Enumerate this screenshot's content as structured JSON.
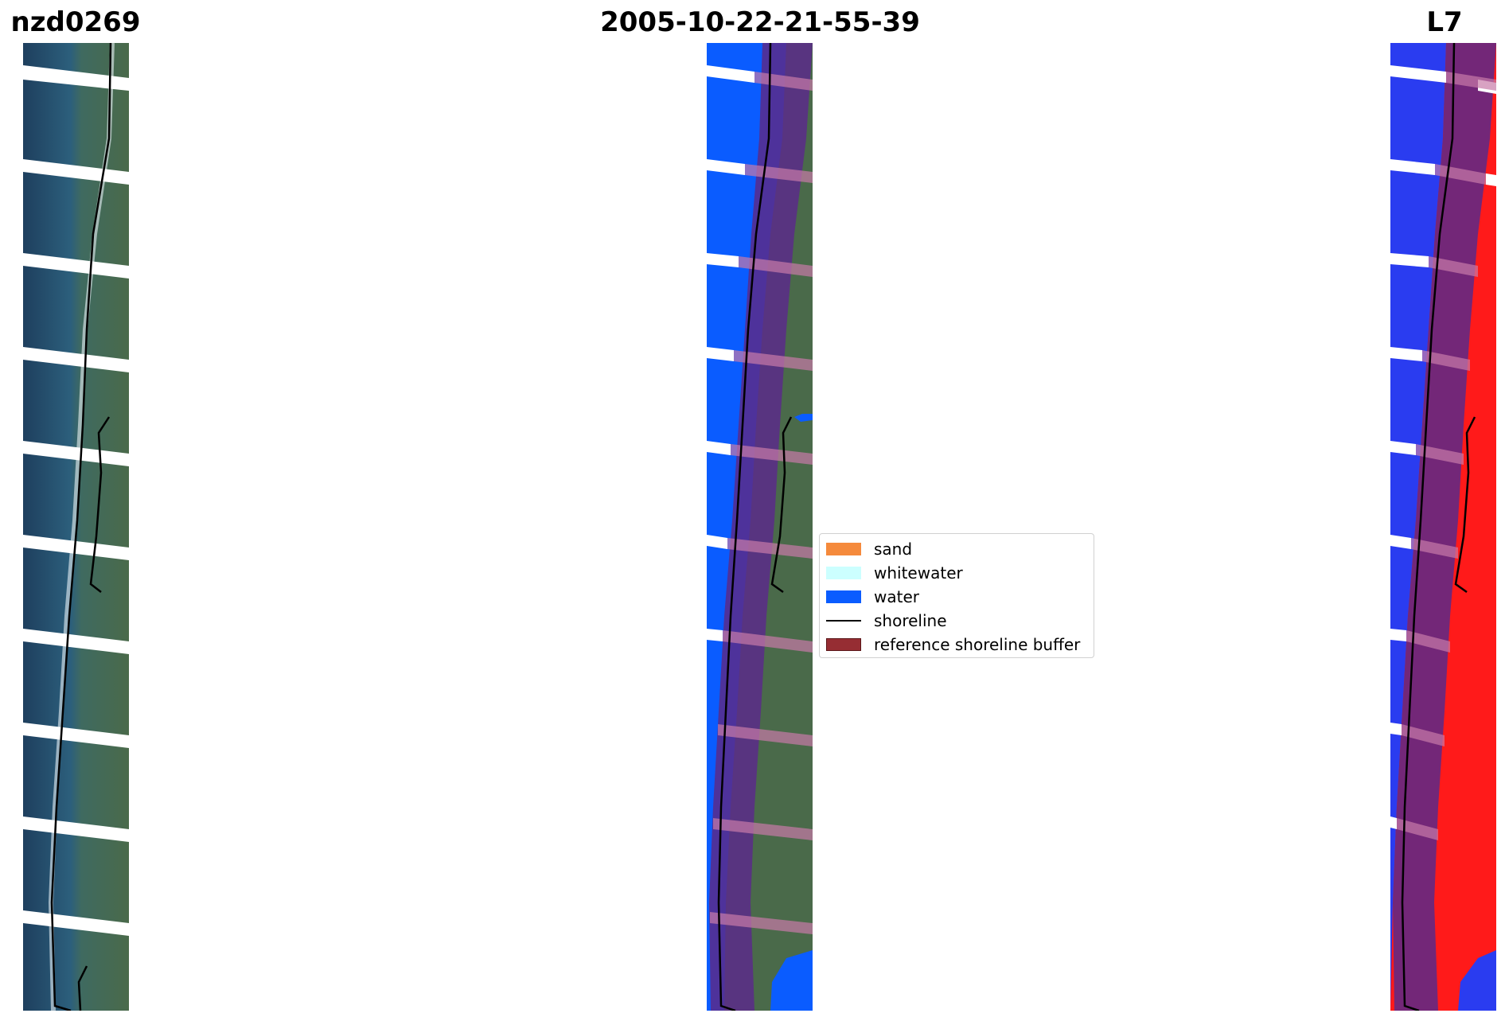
{
  "titles": {
    "site": "nzd0269",
    "date": "2005-10-22-21-55-39",
    "satellite": "L7"
  },
  "panels": [
    {
      "name": "rgb-image",
      "content": "satellite RGB image with detected shoreline"
    },
    {
      "name": "classified-image",
      "content": "classified image with reference shoreline buffer"
    },
    {
      "name": "index-image",
      "content": "water index image with detected shoreline"
    }
  ],
  "legend": {
    "items": [
      {
        "label": "sand",
        "color": "#f58a3c",
        "kind": "patch"
      },
      {
        "label": "whitewater",
        "color": "#ccffff",
        "kind": "patch"
      },
      {
        "label": "water",
        "color": "#0a5cff",
        "kind": "patch"
      },
      {
        "label": "shoreline",
        "color": "#000000",
        "kind": "line"
      },
      {
        "label": "reference shoreline buffer",
        "color": "#962d33",
        "kind": "patch"
      }
    ]
  },
  "colors": {
    "ocean_dark": "#1e3f5e",
    "land_green": "#4a6a4a",
    "water_class": "#0a5cff",
    "buffer_purple": "#5a2a8a",
    "index_blue": "#2a3cf0",
    "index_red": "#ff1a1a"
  }
}
